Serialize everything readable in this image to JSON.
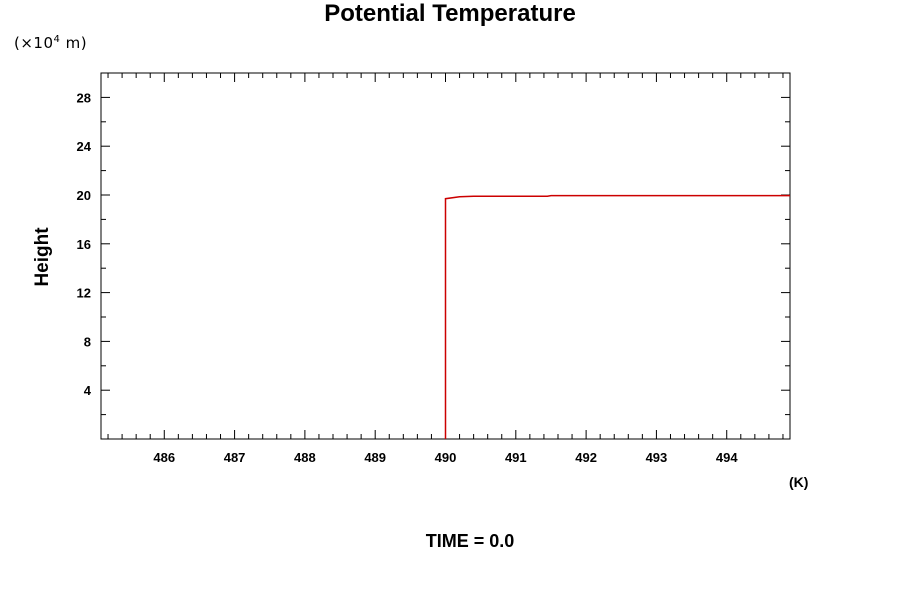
{
  "chart_data": {
    "type": "line",
    "title": "Potential Temperature",
    "ylabel": "Height",
    "y_unit": "(×10⁴ m)",
    "x_unit": "(K)",
    "footer": "TIME = 0.0",
    "xlim": [
      485.1,
      494.9
    ],
    "ylim": [
      0,
      30
    ],
    "x_ticks": [
      486,
      487,
      488,
      489,
      490,
      491,
      492,
      493,
      494
    ],
    "y_ticks": [
      4,
      8,
      12,
      16,
      20,
      24,
      28
    ],
    "grid": false,
    "series": [
      {
        "color": "#cc0000",
        "points": [
          [
            490.0,
            0
          ],
          [
            490.0,
            19.7
          ],
          [
            490.2,
            19.85
          ],
          [
            490.4,
            19.9
          ],
          [
            491.45,
            19.9
          ],
          [
            491.5,
            19.95
          ],
          [
            494.9,
            19.95
          ]
        ]
      }
    ]
  }
}
